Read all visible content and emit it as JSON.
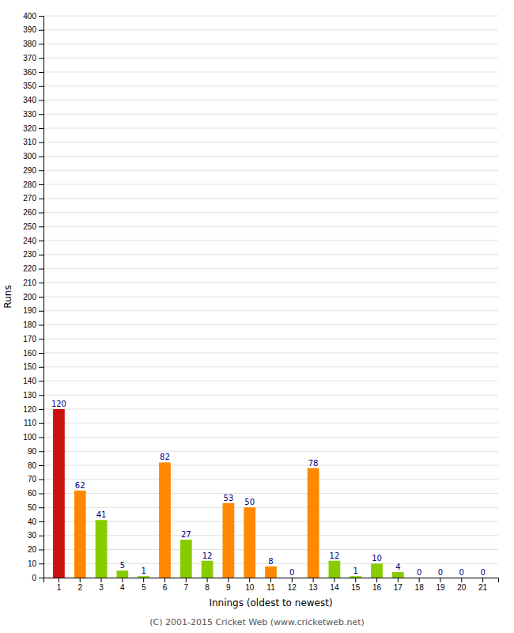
{
  "chart_data": {
    "type": "bar",
    "xlabel": "Innings (oldest to newest)",
    "ylabel": "Runs",
    "categories": [
      "1",
      "2",
      "3",
      "4",
      "5",
      "6",
      "7",
      "8",
      "9",
      "10",
      "11",
      "12",
      "13",
      "14",
      "15",
      "16",
      "17",
      "18",
      "19",
      "20",
      "21"
    ],
    "values": [
      120,
      62,
      41,
      5,
      1,
      82,
      27,
      12,
      53,
      50,
      8,
      0,
      78,
      12,
      1,
      10,
      4,
      0,
      0,
      0,
      0
    ],
    "colors": [
      "#cc1111",
      "#ff8800",
      "#88cc00",
      "#88cc00",
      "#88cc00",
      "#ff8800",
      "#88cc00",
      "#88cc00",
      "#ff8800",
      "#ff8800",
      "#ff8800",
      "#ff8800",
      "#ff8800",
      "#88cc00",
      "#88cc00",
      "#88cc00",
      "#88cc00",
      "#ff8800",
      "#ff8800",
      "#ff8800",
      "#ff8800"
    ],
    "ylim": [
      0,
      400
    ],
    "yticks": [
      0,
      10,
      20,
      30,
      40,
      50,
      60,
      70,
      80,
      90,
      100,
      110,
      120,
      130,
      140,
      150,
      160,
      170,
      180,
      190,
      200,
      210,
      220,
      230,
      240,
      250,
      260,
      270,
      280,
      290,
      300,
      310,
      320,
      330,
      340,
      350,
      360,
      370,
      380,
      390,
      400
    ],
    "grid": true,
    "data_labels": true,
    "annotations": [
      "(C) 2001-2015 Cricket Web (www.cricketweb.net)"
    ]
  }
}
